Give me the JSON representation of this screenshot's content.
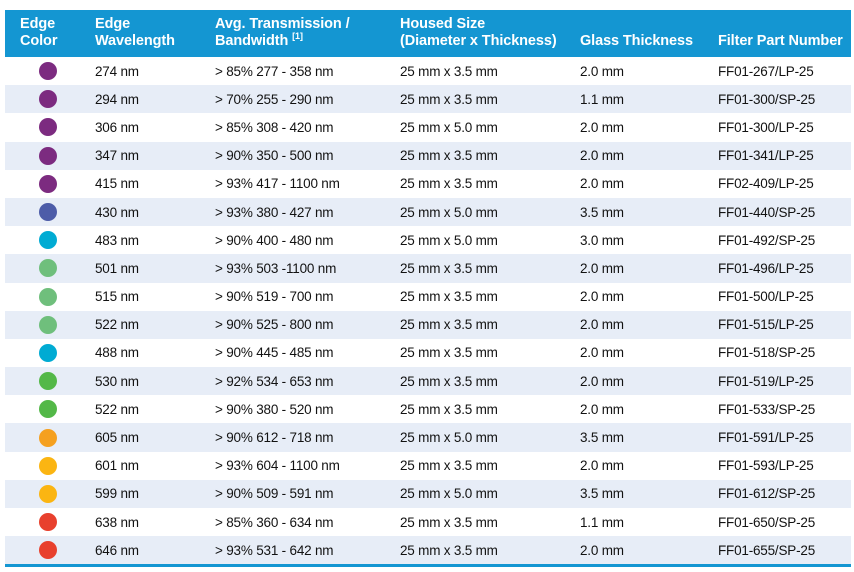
{
  "table": {
    "header": {
      "columns": [
        {
          "line1": "Edge",
          "line2": "Color"
        },
        {
          "line1": "Edge",
          "line2": "Wavelength"
        },
        {
          "line1": "Avg. Transmission /",
          "line2": "Bandwidth",
          "footnote": "[1]"
        },
        {
          "line1": "Housed Size",
          "line2": "(Diameter x Thickness)"
        },
        {
          "line1": "",
          "line2": "Glass Thickness"
        },
        {
          "line1": "",
          "line2": "Filter Part Number"
        }
      ]
    },
    "rows": [
      {
        "edge_color": "purple",
        "wavelength": "274 nm",
        "transmission": "> 85% 277 - 358 nm",
        "housed_size": "25 mm x 3.5 mm",
        "glass_thickness": "2.0 mm",
        "part_number": "FF01-267/LP-25"
      },
      {
        "edge_color": "purple",
        "wavelength": "294 nm",
        "transmission": "> 70% 255 - 290 nm",
        "housed_size": "25 mm x 3.5 mm",
        "glass_thickness": "1.1 mm",
        "part_number": "FF01-300/SP-25"
      },
      {
        "edge_color": "purple",
        "wavelength": "306 nm",
        "transmission": "> 85% 308 - 420 nm",
        "housed_size": "25 mm x 5.0 mm",
        "glass_thickness": "2.0 mm",
        "part_number": "FF01-300/LP-25"
      },
      {
        "edge_color": "purple",
        "wavelength": "347 nm",
        "transmission": "> 90% 350 - 500 nm",
        "housed_size": "25 mm x 3.5 mm",
        "glass_thickness": "2.0 mm",
        "part_number": "FF01-341/LP-25"
      },
      {
        "edge_color": "purple",
        "wavelength": "415 nm",
        "transmission": "> 93% 417 - 1100 nm",
        "housed_size": "25 mm x 3.5 mm",
        "glass_thickness": "2.0 mm",
        "part_number": "FF02-409/LP-25"
      },
      {
        "edge_color": "indigo",
        "wavelength": "430 nm",
        "transmission": "> 93% 380 - 427 nm",
        "housed_size": "25 mm x 5.0 mm",
        "glass_thickness": "3.5 mm",
        "part_number": "FF01-440/SP-25"
      },
      {
        "edge_color": "cyan",
        "wavelength": "483 nm",
        "transmission": "> 90% 400 - 480 nm",
        "housed_size": "25 mm x 5.0 mm",
        "glass_thickness": "3.0 mm",
        "part_number": "FF01-492/SP-25"
      },
      {
        "edge_color": "soft_green",
        "wavelength": "501 nm",
        "transmission": "> 93% 503 -1100 nm",
        "housed_size": "25 mm x 3.5 mm",
        "glass_thickness": "2.0 mm",
        "part_number": "FF01-496/LP-25"
      },
      {
        "edge_color": "soft_green",
        "wavelength": "515 nm",
        "transmission": "> 90% 519 - 700 nm",
        "housed_size": "25 mm x 3.5 mm",
        "glass_thickness": "2.0 mm",
        "part_number": "FF01-500/LP-25"
      },
      {
        "edge_color": "soft_green",
        "wavelength": "522 nm",
        "transmission": "> 90% 525 - 800 nm",
        "housed_size": "25 mm x 3.5 mm",
        "glass_thickness": "2.0 mm",
        "part_number": "FF01-515/LP-25"
      },
      {
        "edge_color": "cyan",
        "wavelength": "488 nm",
        "transmission": "> 90% 445 - 485 nm",
        "housed_size": "25 mm x 3.5 mm",
        "glass_thickness": "2.0 mm",
        "part_number": "FF01-518/SP-25"
      },
      {
        "edge_color": "green",
        "wavelength": "530 nm",
        "transmission": "> 92% 534 - 653 nm",
        "housed_size": "25 mm x 3.5 mm",
        "glass_thickness": "2.0 mm",
        "part_number": "FF01-519/LP-25"
      },
      {
        "edge_color": "green",
        "wavelength": "522 nm",
        "transmission": "> 90% 380 - 520 nm",
        "housed_size": "25 mm x 3.5 mm",
        "glass_thickness": "2.0 mm",
        "part_number": "FF01-533/SP-25"
      },
      {
        "edge_color": "orange",
        "wavelength": "605 nm",
        "transmission": "> 90% 612 - 718 nm",
        "housed_size": "25 mm x 5.0 mm",
        "glass_thickness": "3.5 mm",
        "part_number": "FF01-591/LP-25"
      },
      {
        "edge_color": "yellow",
        "wavelength": "601 nm",
        "transmission": "> 93% 604 - 1100 nm",
        "housed_size": "25 mm x 3.5 mm",
        "glass_thickness": "2.0 mm",
        "part_number": "FF01-593/LP-25"
      },
      {
        "edge_color": "yellow",
        "wavelength": "599 nm",
        "transmission": "> 90% 509 - 591 nm",
        "housed_size": "25 mm x 5.0 mm",
        "glass_thickness": "3.5 mm",
        "part_number": "FF01-612/SP-25"
      },
      {
        "edge_color": "red",
        "wavelength": "638 nm",
        "transmission": "> 85% 360 - 634 nm",
        "housed_size": "25 mm x 3.5 mm",
        "glass_thickness": "1.1 mm",
        "part_number": "FF01-650/SP-25"
      },
      {
        "edge_color": "red",
        "wavelength": "646 nm",
        "transmission": "> 93% 531 - 642 nm",
        "housed_size": "25 mm x 3.5 mm",
        "glass_thickness": "2.0 mm",
        "part_number": "FF01-655/SP-25"
      }
    ]
  },
  "colors": {
    "header_bg": "#1496D2",
    "row_alt_bg": "#E7EDF7",
    "dot": {
      "purple": "#7C2B80",
      "indigo": "#4D5CA8",
      "cyan": "#00ABD3",
      "soft_green": "#6FBF7C",
      "green": "#53B848",
      "orange": "#F5A01F",
      "yellow": "#FBB512",
      "red": "#E8402D"
    }
  }
}
